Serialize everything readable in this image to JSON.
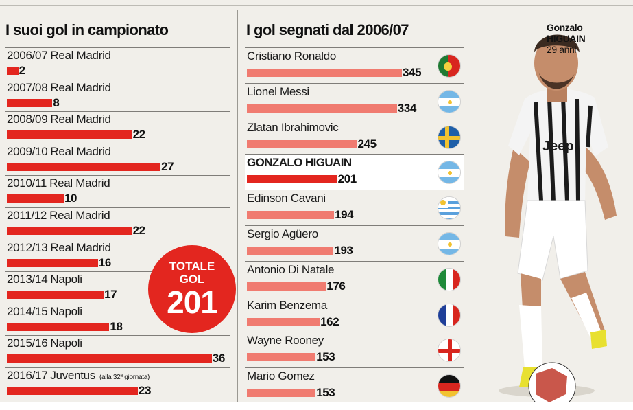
{
  "left_title": "I suoi gol in campionato",
  "right_title": "I gol segnati dal 2006/07",
  "player": {
    "first_name": "Gonzalo",
    "last_name": "HIGUAIN",
    "age": "29 anni"
  },
  "total": {
    "line1": "TOTALE",
    "line2": "GOL",
    "value": "201"
  },
  "colors": {
    "bar_red": "#e3261f",
    "bar_light": "#f07b70",
    "accent": "#e3261f"
  },
  "chart_data": [
    {
      "type": "bar",
      "title": "I suoi gol in campionato",
      "categories": [
        "2006/07 Real Madrid",
        "2007/08 Real Madrid",
        "2008/09 Real Madrid",
        "2009/10 Real Madrid",
        "2010/11 Real Madrid",
        "2011/12 Real Madrid",
        "2012/13 Real Madrid",
        "2013/14 Napoli",
        "2014/15 Napoli",
        "2015/16 Napoli",
        "2016/17 Juventus"
      ],
      "rows": [
        {
          "season": "2006/07",
          "team": "Real Madrid",
          "value": 2
        },
        {
          "season": "2007/08",
          "team": "Real Madrid",
          "value": 8
        },
        {
          "season": "2008/09",
          "team": "Real Madrid",
          "value": 22
        },
        {
          "season": "2009/10",
          "team": "Real Madrid",
          "value": 27
        },
        {
          "season": "2010/11",
          "team": "Real Madrid",
          "value": 10
        },
        {
          "season": "2011/12",
          "team": "Real Madrid",
          "value": 22
        },
        {
          "season": "2012/13",
          "team": "Real Madrid",
          "value": 16
        },
        {
          "season": "2013/14",
          "team": "Napoli",
          "value": 17
        },
        {
          "season": "2014/15",
          "team": "Napoli",
          "value": 18
        },
        {
          "season": "2015/16",
          "team": "Napoli",
          "value": 36
        },
        {
          "season": "2016/17",
          "team": "Juventus",
          "note": "(alla 32ª giornata)",
          "value": 23
        }
      ],
      "values": [
        2,
        8,
        22,
        27,
        10,
        22,
        16,
        17,
        18,
        36,
        23
      ]
    },
    {
      "type": "bar",
      "title": "I gol segnati dal 2006/07",
      "categories": [
        "Cristiano Ronaldo",
        "Lionel Messi",
        "Zlatan Ibrahimovic",
        "GONZALO HIGUAIN",
        "Edinson Cavani",
        "Sergio Agüero",
        "Antonio Di Natale",
        "Karim Benzema",
        "Wayne Rooney",
        "Mario Gomez"
      ],
      "rows": [
        {
          "name": "Cristiano Ronaldo",
          "value": 345,
          "flag": "portugal-flag-icon"
        },
        {
          "name": "Lionel Messi",
          "value": 334,
          "flag": "argentina-flag-icon"
        },
        {
          "name": "Zlatan Ibrahimovic",
          "value": 245,
          "flag": "sweden-flag-icon"
        },
        {
          "name": "GONZALO HIGUAIN",
          "value": 201,
          "flag": "argentina-flag-icon",
          "highlight": true
        },
        {
          "name": "Edinson Cavani",
          "value": 194,
          "flag": "uruguay-flag-icon"
        },
        {
          "name": "Sergio Agüero",
          "value": 193,
          "flag": "argentina-flag-icon"
        },
        {
          "name": "Antonio Di Natale",
          "value": 176,
          "flag": "italy-flag-icon"
        },
        {
          "name": "Karim Benzema",
          "value": 162,
          "flag": "france-flag-icon"
        },
        {
          "name": "Wayne Rooney",
          "value": 153,
          "flag": "england-flag-icon"
        },
        {
          "name": "Mario Gomez",
          "value": 153,
          "flag": "germany-flag-icon"
        }
      ],
      "values": [
        345,
        334,
        245,
        201,
        194,
        193,
        176,
        162,
        153,
        153
      ]
    }
  ]
}
